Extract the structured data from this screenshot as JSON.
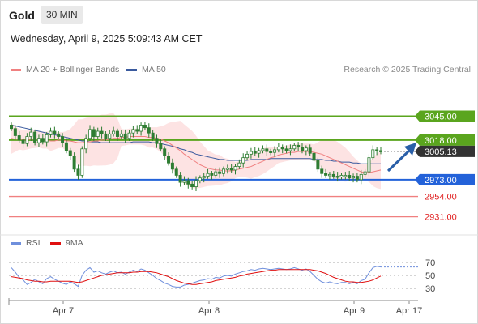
{
  "header": {
    "asset": "Gold",
    "timeframe": "30 MIN",
    "datetime": "Wednesday, April 9, 2025 5:09:43 AM CET"
  },
  "legend": {
    "ma20_label": "MA 20 + Bollinger Bands",
    "ma50_label": "MA 50",
    "credit": "Research © 2025 Trading Central"
  },
  "rsi_legend": {
    "rsi_label": "RSI",
    "ma9_label": "9MA"
  },
  "colors": {
    "bollinger_fill": "#fde3e3",
    "ma20": "#f08080",
    "ma50": "#3a5a9e",
    "candle": "#2e7d32",
    "resistance": "#5aa51e",
    "pivot": "#2362d9",
    "support": "#f08080",
    "rsi": "#6f8fdc",
    "rsi_ma": "#e01010"
  },
  "chart_data": {
    "type": "candlestick",
    "x_ticks": [
      "Apr 7",
      "Apr 8",
      "Apr 9",
      "Apr 17"
    ],
    "ylim": [
      2915,
      3085
    ],
    "levels": [
      {
        "label": "3045.00",
        "value": 3045,
        "kind": "resistance"
      },
      {
        "label": "3018.00",
        "value": 3018,
        "kind": "resistance"
      },
      {
        "label": "3005.13",
        "value": 3005.13,
        "kind": "last"
      },
      {
        "label": "2973.00",
        "value": 2973,
        "kind": "pivot"
      },
      {
        "label": "2954.00",
        "value": 2954,
        "kind": "support"
      },
      {
        "label": "2931.00",
        "value": 2931,
        "kind": "support"
      }
    ],
    "price_close": [
      3031,
      3023,
      3018,
      3014,
      3022,
      3027,
      3015,
      3020,
      3016,
      3024,
      3028,
      3025,
      3022,
      3015,
      3006,
      3000,
      2985,
      2978,
      3008,
      3020,
      3030,
      3022,
      3028,
      3025,
      3020,
      3025,
      3028,
      3022,
      3025,
      3020,
      3026,
      3030,
      3028,
      3035,
      3032,
      3026,
      3020,
      3014,
      3008,
      3000,
      2992,
      2985,
      2978,
      2970,
      2972,
      2968,
      2965,
      2972,
      2975,
      2977,
      2980,
      2978,
      2982,
      2980,
      2985,
      2986,
      2984,
      2988,
      2992,
      2998,
      3002,
      3005,
      3003,
      3006,
      3008,
      3005,
      3004,
      3007,
      3010,
      3008,
      3006,
      3008,
      3012,
      3010,
      3006,
      3009,
      3003,
      2995,
      2985,
      2980,
      2978,
      2979,
      2977,
      2976,
      2978,
      2978,
      2975,
      2977,
      2973,
      2979,
      2982,
      2998,
      3007,
      3006,
      3005
    ],
    "series": [
      {
        "name": "MA 20",
        "values": [
          3020,
          3019,
          3019,
          3018,
          3018,
          3019,
          3019,
          3019,
          3018,
          3018,
          3017,
          3017,
          3018,
          3018,
          3017,
          3017,
          3016,
          3015,
          3015,
          3016,
          3016,
          3017,
          3017,
          3018,
          3018,
          3019,
          3020,
          3020,
          3021,
          3021,
          3022,
          3022,
          3022,
          3022,
          3022,
          3021,
          3021,
          3020,
          3019,
          3017,
          3015,
          3012,
          3009,
          3006,
          3002,
          2999,
          2996,
          2993,
          2990,
          2988,
          2986,
          2985,
          2984,
          2984,
          2983,
          2983,
          2983,
          2984,
          2985,
          2986,
          2987,
          2988,
          2990,
          2992,
          2994,
          2996,
          2998,
          2999,
          3001,
          3002,
          3003,
          3004,
          3004,
          3005,
          3005,
          3005,
          3005,
          3004,
          3003,
          3002,
          3000,
          2998,
          2996,
          2994,
          2992,
          2990,
          2988,
          2986,
          2984,
          2982,
          2981,
          2981,
          2982,
          2983,
          2984
        ]
      },
      {
        "name": "MA 50",
        "values": [
          3035,
          3034,
          3033,
          3032,
          3031,
          3030,
          3029,
          3028,
          3027,
          3026,
          3025,
          3024,
          3023,
          3022,
          3021,
          3020,
          3019,
          3018,
          3017,
          3017,
          3016,
          3016,
          3016,
          3015,
          3015,
          3015,
          3015,
          3015,
          3015,
          3015,
          3015,
          3016,
          3016,
          3016,
          3016,
          3016,
          3015,
          3015,
          3014,
          3013,
          3012,
          3011,
          3010,
          3008,
          3007,
          3005,
          3004,
          3002,
          3001,
          3000,
          2999,
          2998,
          2997,
          2996,
          2996,
          2995,
          2995,
          2995,
          2995,
          2995,
          2995,
          2996,
          2996,
          2996,
          2996,
          2996,
          2997,
          2997,
          2997,
          2997,
          2997,
          2997,
          2997,
          2997,
          2997,
          2997,
          2997,
          2996,
          2996,
          2996,
          2995,
          2995,
          2994,
          2994,
          2993,
          2993,
          2993,
          2992,
          2992,
          2991,
          2991,
          2991,
          2991,
          2991,
          2991
        ]
      },
      {
        "name": "RSI",
        "values": [
          62,
          55,
          47,
          43,
          36,
          39,
          44,
          40,
          37,
          45,
          48,
          44,
          41,
          38,
          36,
          40,
          37,
          33,
          50,
          58,
          62,
          55,
          57,
          54,
          52,
          55,
          57,
          54,
          55,
          52,
          55,
          58,
          56,
          60,
          58,
          54,
          50,
          45,
          42,
          38,
          36,
          33,
          32,
          32,
          35,
          36,
          38,
          40,
          42,
          43,
          45,
          44,
          47,
          46,
          49,
          50,
          49,
          52,
          54,
          56,
          57,
          59,
          58,
          60,
          61,
          60,
          59,
          60,
          61,
          60,
          59,
          60,
          62,
          60,
          58,
          60,
          56,
          50,
          44,
          40,
          38,
          40,
          38,
          37,
          39,
          39,
          37,
          39,
          37,
          42,
          44,
          54,
          62,
          64,
          63
        ]
      },
      {
        "name": "9MA",
        "values": [
          48,
          47,
          46,
          45,
          43,
          42,
          41,
          41,
          40,
          40,
          41,
          41,
          41,
          41,
          41,
          41,
          40,
          39,
          40,
          42,
          44,
          46,
          48,
          50,
          51,
          52,
          53,
          54,
          54,
          54,
          54,
          55,
          55,
          56,
          56,
          56,
          55,
          54,
          52,
          50,
          48,
          45,
          42,
          40,
          38,
          37,
          36,
          36,
          37,
          38,
          39,
          40,
          42,
          43,
          44,
          45,
          46,
          47,
          49,
          50,
          52,
          53,
          54,
          55,
          56,
          57,
          58,
          58,
          59,
          59,
          59,
          59,
          59,
          59,
          59,
          59,
          59,
          58,
          57,
          55,
          53,
          50,
          47,
          45,
          43,
          41,
          40,
          40,
          39,
          39,
          40,
          41,
          43,
          46,
          49
        ]
      }
    ],
    "rsi_ticks": [
      70,
      50,
      30
    ]
  }
}
